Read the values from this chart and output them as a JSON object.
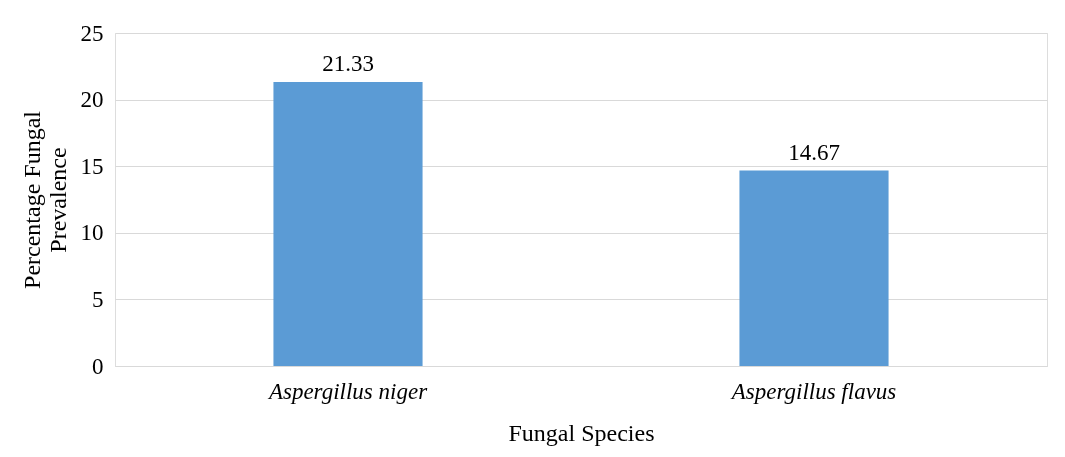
{
  "chart_data": {
    "type": "bar",
    "xlabel": "Fungal Species",
    "ylabel": "Percentage Fungal Prevalence",
    "categories": [
      "Aspergillus niger",
      "Aspergillus flavus"
    ],
    "values": [
      21.33,
      14.67
    ],
    "color": "#5b9bd5",
    "ylim": [
      0,
      25
    ],
    "yticks": [
      0,
      5,
      10,
      15,
      20,
      25
    ],
    "grid": "y",
    "data_labels": true
  }
}
